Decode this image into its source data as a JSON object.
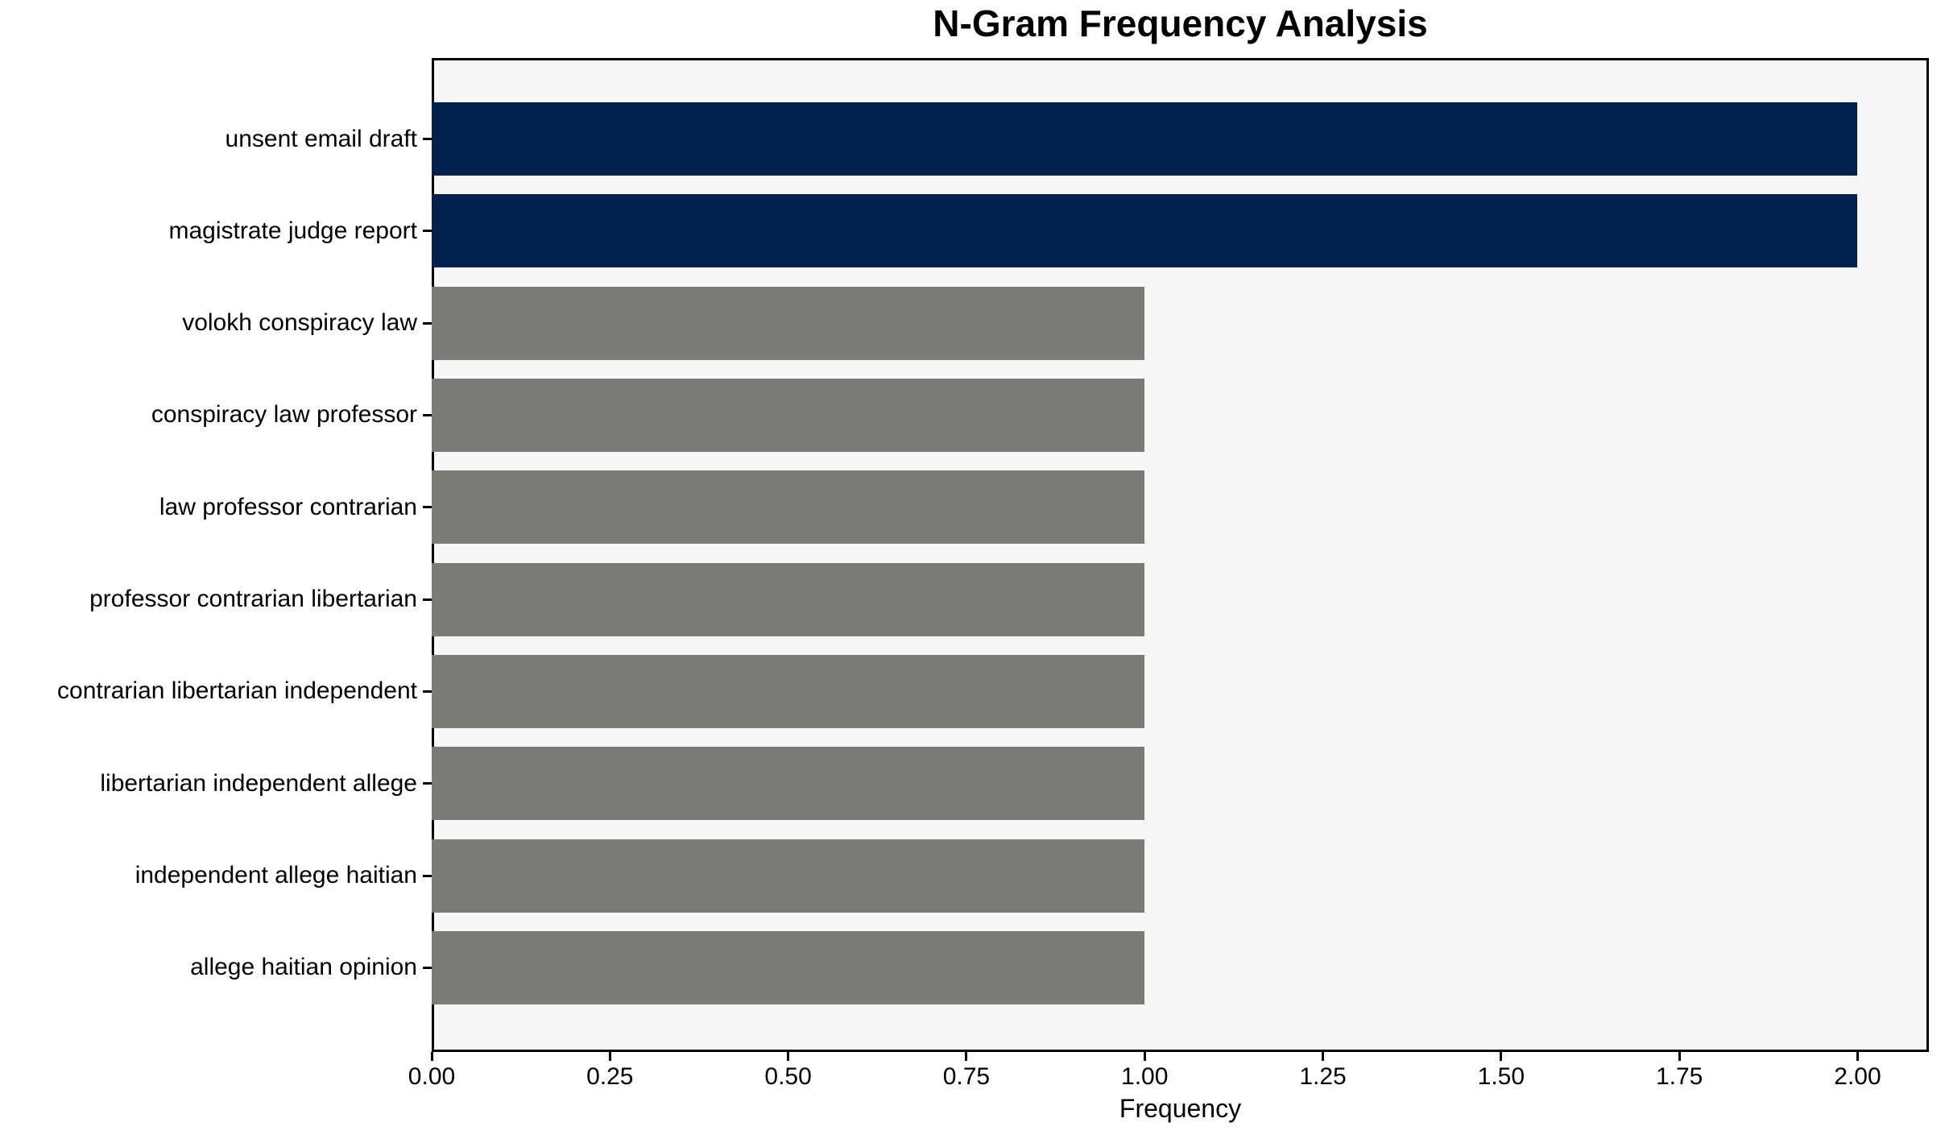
{
  "chart_data": {
    "type": "bar",
    "orientation": "horizontal",
    "title": "N-Gram Frequency Analysis",
    "xlabel": "Frequency",
    "ylabel": "",
    "categories": [
      "unsent email draft",
      "magistrate judge report",
      "volokh conspiracy law",
      "conspiracy law professor",
      "law professor contrarian",
      "professor contrarian libertarian",
      "contrarian libertarian independent",
      "libertarian independent allege",
      "independent allege haitian",
      "allege haitian opinion"
    ],
    "values": [
      2,
      2,
      1,
      1,
      1,
      1,
      1,
      1,
      1,
      1
    ],
    "bar_colors": [
      "#02224D",
      "#02224D",
      "#7B7B78",
      "#7B7B78",
      "#7B7B78",
      "#7B7B78",
      "#7B7B78",
      "#7B7B78",
      "#7B7B78",
      "#7B7B78"
    ],
    "xlim": [
      0,
      2.1
    ],
    "x_ticks": [
      {
        "value": 0.0,
        "label": "0.00"
      },
      {
        "value": 0.25,
        "label": "0.25"
      },
      {
        "value": 0.5,
        "label": "0.50"
      },
      {
        "value": 0.75,
        "label": "0.75"
      },
      {
        "value": 1.0,
        "label": "1.00"
      },
      {
        "value": 1.25,
        "label": "1.25"
      },
      {
        "value": 1.5,
        "label": "1.50"
      },
      {
        "value": 1.75,
        "label": "1.75"
      },
      {
        "value": 2.0,
        "label": "2.00"
      }
    ],
    "grid": false,
    "legend": null,
    "colors": {
      "highlight_bar": "#02224D",
      "muted_bar": "#7B7B78",
      "plot_background": "#F7F7F7",
      "figure_background": "#FFFFFF",
      "frame": "#000000"
    }
  }
}
